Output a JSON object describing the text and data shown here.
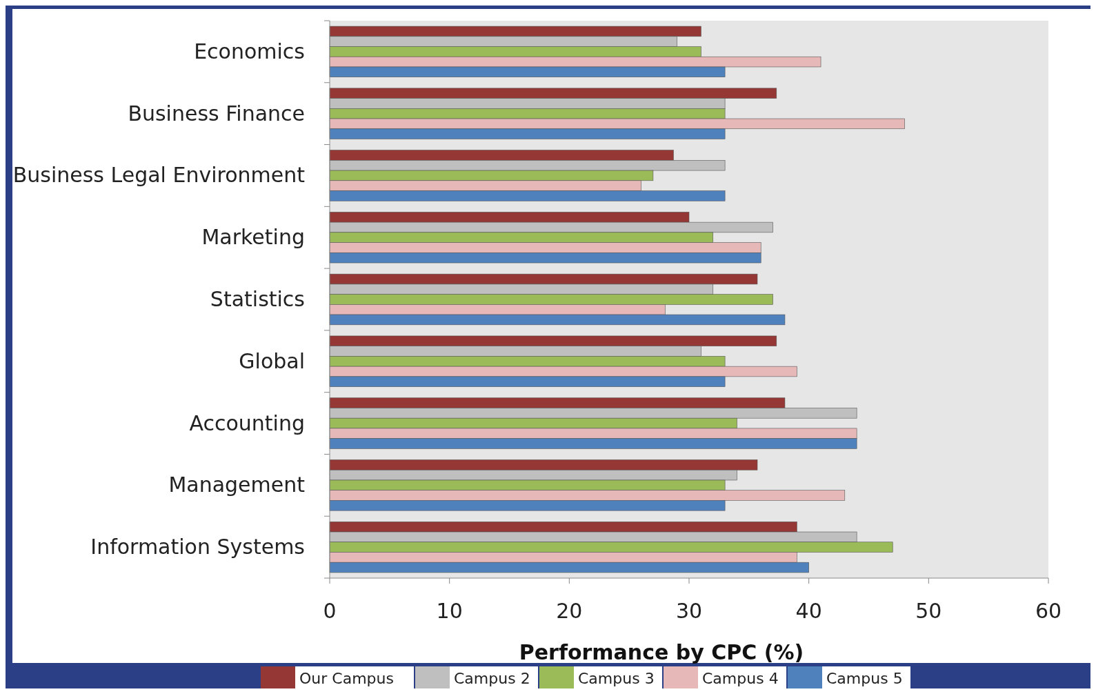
{
  "chart_data": {
    "type": "bar",
    "orientation": "horizontal",
    "xlabel": "Performance by CPC (%)",
    "categories": [
      "Economics",
      "Business Finance",
      "Business Legal Environment",
      "Marketing",
      "Statistics",
      "Global",
      "Accounting",
      "Management",
      "Information Systems"
    ],
    "series": [
      {
        "name": "Our Campus",
        "color": "#953735",
        "values": [
          31,
          37.3,
          28.7,
          30,
          35.7,
          37.3,
          38,
          35.7,
          39
        ]
      },
      {
        "name": "Campus 2",
        "color": "#bfbfbf",
        "values": [
          29,
          33,
          33,
          37,
          32,
          31,
          44,
          34,
          44
        ]
      },
      {
        "name": "Campus 3",
        "color": "#9bbb59",
        "values": [
          31,
          33,
          27,
          32,
          37,
          33,
          34,
          33,
          47
        ]
      },
      {
        "name": "Campus 4",
        "color": "#e6b9b8",
        "values": [
          41,
          48,
          26,
          36,
          28,
          39,
          44,
          43,
          39
        ]
      },
      {
        "name": "Campus 5",
        "color": "#4f81bd",
        "values": [
          33,
          33,
          33,
          36,
          38,
          33,
          44,
          33,
          40
        ]
      }
    ],
    "xlim": [
      0,
      60
    ],
    "xticks": [
      0,
      10,
      20,
      30,
      40,
      50,
      60
    ],
    "grid": false,
    "legend": "bottom"
  }
}
